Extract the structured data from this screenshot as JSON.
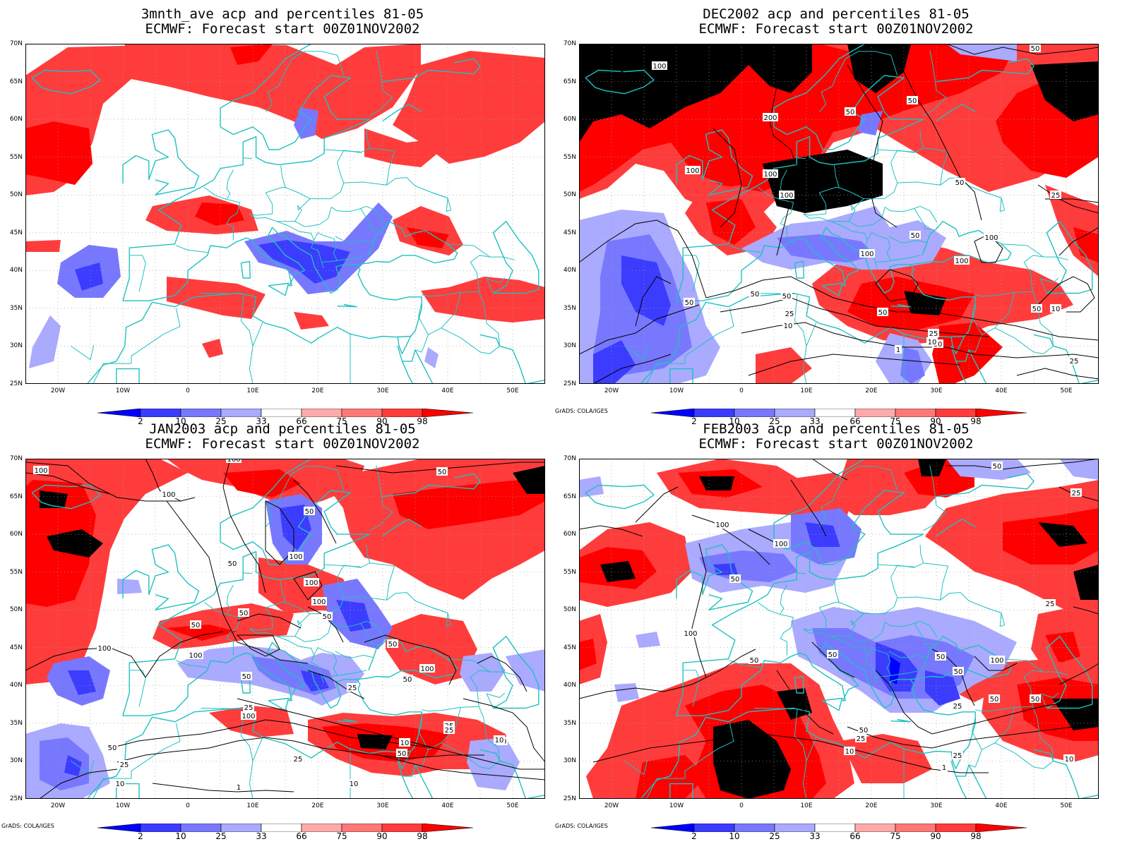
{
  "panels": [
    {
      "id": "p1",
      "title_line1": "3mnth_ave acp and percentiles 81-05",
      "title_line2": "ECMWF: Forecast start 00Z01NOV2002",
      "contour_labels": [],
      "credit": ""
    },
    {
      "id": "p2",
      "title_line1": "DEC2002 acp and percentiles 81-05",
      "title_line2": "ECMWF: Forecast start 00Z01NOV2002",
      "contour_labels": [
        "100",
        "200",
        "100",
        "100",
        "100",
        "50",
        "50",
        "50",
        "50",
        "25",
        "100",
        "100",
        "50",
        "100",
        "50",
        "50",
        "50",
        "25",
        "10",
        "50",
        "25",
        "10",
        "1",
        "10",
        "50",
        "10",
        "25"
      ],
      "credit": "GrADS: COLA/IGES"
    },
    {
      "id": "p3",
      "title_line1": "JAN2003 acp and percentiles 81-05",
      "title_line2": "ECMWF: Forecast start 00Z01NOV2002",
      "contour_labels": [
        "100",
        "100",
        "100",
        "50",
        "50",
        "100",
        "50",
        "100",
        "50",
        "100",
        "50",
        "50",
        "100",
        "100",
        "50",
        "100",
        "50",
        "25",
        "50",
        "25",
        "100",
        "50",
        "25",
        "10",
        "1",
        "25",
        "10",
        "25",
        "10",
        "50",
        "50",
        "10",
        "25"
      ],
      "credit": "GrADS: COLA/IGES"
    },
    {
      "id": "p4",
      "title_line1": "FEB2003 acp and percentiles 81-05",
      "title_line2": "ECMWF: Forecast start 00Z01NOV2002",
      "contour_labels": [
        "50",
        "25",
        "100",
        "100",
        "50",
        "25",
        "100",
        "50",
        "50",
        "50",
        "50",
        "100",
        "50",
        "50",
        "25",
        "10",
        "25",
        "50",
        "10",
        "25",
        "1"
      ],
      "credit": "GrADS: COLA/IGES"
    }
  ],
  "axes": {
    "y_labels": [
      "70N",
      "65N",
      "60N",
      "55N",
      "50N",
      "45N",
      "40N",
      "35N",
      "30N",
      "25N"
    ],
    "x_labels": [
      "20W",
      "10W",
      "0",
      "10E",
      "20E",
      "30E",
      "40E",
      "50E"
    ]
  },
  "colorbar": {
    "labels": [
      "2",
      "10",
      "25",
      "33",
      "66",
      "75",
      "90",
      "98"
    ],
    "colors": [
      "#0000ff",
      "#3c3cff",
      "#7878ff",
      "#aaaaff",
      "#ffffff",
      "#ffaaaa",
      "#ff7878",
      "#ff3c3c",
      "#ff0000"
    ]
  },
  "colors": {
    "coast": "#20c0c0",
    "contour": "#000000",
    "grid": "#a0a0a0"
  }
}
